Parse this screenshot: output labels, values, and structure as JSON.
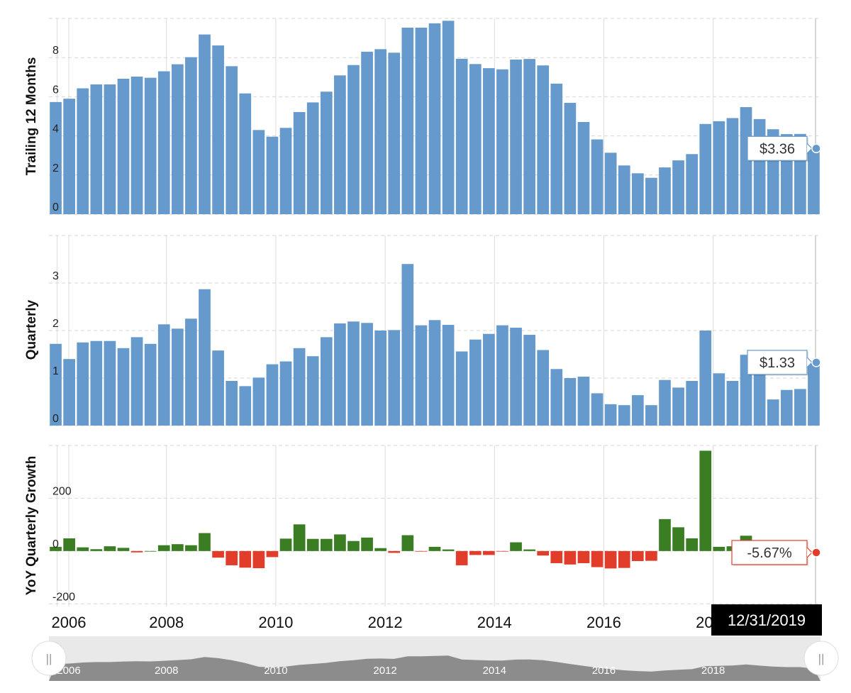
{
  "chart_data": [
    {
      "type": "bar",
      "ylabel": "Trailing 12 Months",
      "ylim": [
        0,
        10
      ],
      "yticks": [
        "0",
        "2",
        "4",
        "6",
        "8"
      ],
      "color": "#6699cc",
      "x": [
        "2005-12-31",
        "2006-03-31",
        "2006-06-30",
        "2006-09-30",
        "2006-12-31",
        "2007-03-31",
        "2007-06-30",
        "2007-09-30",
        "2007-12-31",
        "2008-03-31",
        "2008-06-30",
        "2008-09-30",
        "2008-12-31",
        "2009-03-31",
        "2009-06-30",
        "2009-09-30",
        "2009-12-31",
        "2010-03-31",
        "2010-06-30",
        "2010-09-30",
        "2010-12-31",
        "2011-03-31",
        "2011-06-30",
        "2011-09-30",
        "2011-12-31",
        "2012-03-31",
        "2012-06-30",
        "2012-09-30",
        "2012-12-31",
        "2013-03-31",
        "2013-06-30",
        "2013-09-30",
        "2013-12-31",
        "2014-03-31",
        "2014-06-30",
        "2014-09-30",
        "2014-12-31",
        "2015-03-31",
        "2015-06-30",
        "2015-09-30",
        "2015-12-31",
        "2016-03-31",
        "2016-06-30",
        "2016-09-30",
        "2016-12-31",
        "2017-03-31",
        "2017-06-30",
        "2017-09-30",
        "2017-12-31",
        "2018-03-31",
        "2018-06-30",
        "2018-09-30",
        "2018-12-31",
        "2019-03-31",
        "2019-06-30",
        "2019-09-30",
        "2019-12-31"
      ],
      "values": [
        5.73,
        5.9,
        6.43,
        6.63,
        6.63,
        6.92,
        7.03,
        6.97,
        7.3,
        7.66,
        8.02,
        9.18,
        8.62,
        7.56,
        6.17,
        4.3,
        3.96,
        4.41,
        5.22,
        5.71,
        6.26,
        7.09,
        7.62,
        8.3,
        8.43,
        8.25,
        9.53,
        9.53,
        9.75,
        9.88,
        7.94,
        7.67,
        7.46,
        7.4,
        7.9,
        7.93,
        7.6,
        6.67,
        5.69,
        4.71,
        3.82,
        3.14,
        2.49,
        2.09,
        1.86,
        2.39,
        2.75,
        3.07,
        4.61,
        4.75,
        4.91,
        5.47,
        4.86,
        4.34,
        4.09,
        4.1,
        3.36
      ]
    },
    {
      "type": "bar",
      "ylabel": "Quarterly",
      "ylim": [
        0,
        4
      ],
      "yticks": [
        "0",
        "1",
        "2",
        "3"
      ],
      "color": "#6699cc",
      "values": [
        1.72,
        1.4,
        1.75,
        1.78,
        1.78,
        1.63,
        1.86,
        1.72,
        2.13,
        2.04,
        2.25,
        2.87,
        1.58,
        0.94,
        0.83,
        1.01,
        1.29,
        1.35,
        1.63,
        1.46,
        1.86,
        2.15,
        2.19,
        2.16,
        2.0,
        2.01,
        3.4,
        2.11,
        2.22,
        2.12,
        1.56,
        1.81,
        1.93,
        2.11,
        2.06,
        1.91,
        1.59,
        1.19,
        1.0,
        1.03,
        0.68,
        0.45,
        0.43,
        0.64,
        0.43,
        0.96,
        0.8,
        0.94,
        2.0,
        1.1,
        0.94,
        1.49,
        1.22,
        0.55,
        0.75,
        0.77,
        1.33
      ]
    },
    {
      "type": "bar",
      "ylabel": "YoY Quarterly Growth",
      "ylim": [
        -210,
        400
      ],
      "yticks": [
        "-200",
        "0",
        "200"
      ],
      "pos_color": "#3a7d22",
      "neg_color": "#e23c2a",
      "values": [
        16,
        48,
        14,
        7,
        18,
        12,
        -5,
        0,
        22,
        26,
        22,
        68,
        -25,
        -54,
        -63,
        -65,
        -23,
        47,
        101,
        46,
        46,
        63,
        38,
        51,
        11,
        -7,
        60,
        -2,
        16,
        6,
        -54,
        -15,
        -15,
        -2,
        33,
        6,
        -17,
        -46,
        -51,
        -46,
        -61,
        -66,
        -64,
        -38,
        -37,
        121,
        90,
        48,
        380,
        16,
        18,
        58,
        -5,
        -51,
        -18,
        -28,
        -5.67
      ]
    }
  ],
  "x_axis": {
    "tick_labels": [
      "2006",
      "2008",
      "2010",
      "2012",
      "2014",
      "2016",
      "2018"
    ]
  },
  "tooltips": {
    "ttm": "$3.36",
    "quarterly": "$1.33",
    "growth": "-5.67%"
  },
  "date_badge": "12/31/2019",
  "navigator": {
    "labels": [
      "2006",
      "2008",
      "2010",
      "2012",
      "2014",
      "2016",
      "2018"
    ],
    "left_handle": "||",
    "right_handle": "||"
  },
  "colors": {
    "bar": "#6699cc",
    "positive": "#3a7d22",
    "negative": "#e23c2a",
    "badge": "#000000",
    "navigator": "#8c8c8c"
  }
}
